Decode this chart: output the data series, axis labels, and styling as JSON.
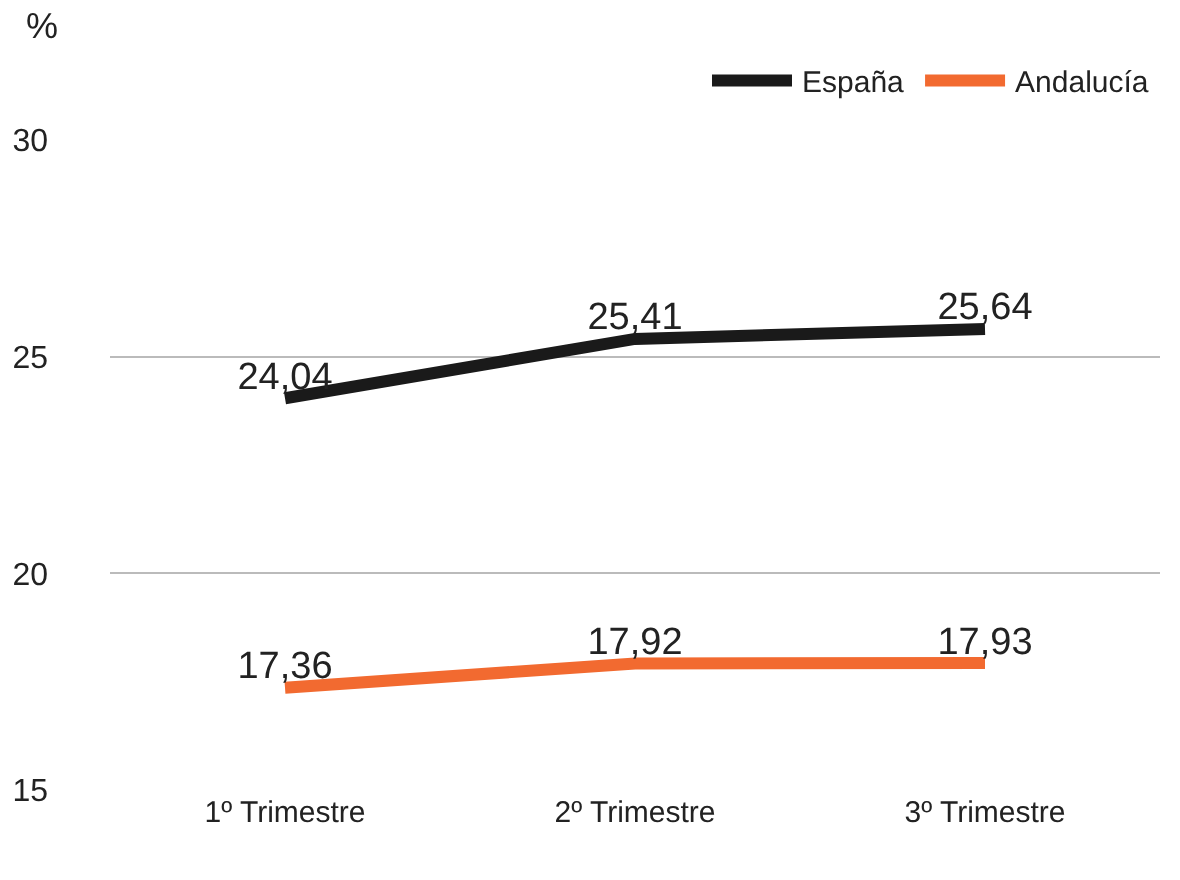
{
  "chart_data": {
    "type": "line",
    "ylabel": "%",
    "categories": [
      "1º Trimestre",
      "2º Trimestre",
      "3º Trimestre"
    ],
    "series": [
      {
        "name": "España",
        "color": "#1a1a1a",
        "values": [
          24.04,
          25.41,
          25.64
        ],
        "value_labels": [
          "24,04",
          "25,41",
          "25,64"
        ]
      },
      {
        "name": "Andalucía",
        "color": "#f26a30",
        "values": [
          17.36,
          17.92,
          17.93
        ],
        "value_labels": [
          "17,36",
          "17,92",
          "17,93"
        ]
      }
    ],
    "ylim": [
      15,
      30
    ],
    "yticks": [
      15,
      20,
      25,
      30
    ],
    "grid": "y",
    "legend": "top right",
    "marker": "none",
    "line_style": "solid"
  }
}
